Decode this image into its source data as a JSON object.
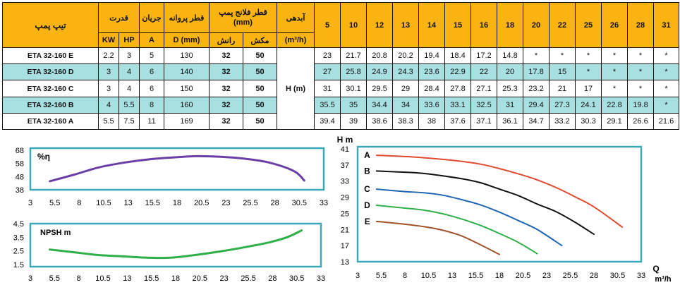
{
  "table": {
    "header": {
      "model_label": "تیپ پمپ",
      "power_label": "قدرت",
      "current_label": "جریان",
      "impeller_label": "قطر پروانه",
      "flange_label": "قطر فلانج پمپ (mm)",
      "flow_label": "آبدهی",
      "kw": "KW",
      "hp": "HP",
      "a": "A",
      "d_mm": "D (mm)",
      "discharge": "رانش",
      "suction": "مکش",
      "flow_unit": "(m³/h)",
      "head_label": "H (m)",
      "flows": [
        "5",
        "10",
        "12",
        "13",
        "14",
        "15",
        "16",
        "18",
        "20",
        "22",
        "25",
        "26",
        "28",
        "31"
      ]
    },
    "rows": [
      {
        "model": "ETA 32-160 E",
        "kw": "2.2",
        "hp": "3",
        "a": "5",
        "d": "130",
        "discharge": "32",
        "suction": "50",
        "heads": [
          "23",
          "21.7",
          "20.8",
          "20.2",
          "19.4",
          "18.4",
          "17.2",
          "14.8",
          "*",
          "*",
          "*",
          "*",
          "*",
          "*"
        ]
      },
      {
        "model": "ETA 32-160 D",
        "kw": "3",
        "hp": "4",
        "a": "6",
        "d": "140",
        "discharge": "32",
        "suction": "50",
        "heads": [
          "27",
          "25.8",
          "24.9",
          "24.3",
          "23.6",
          "22.9",
          "22",
          "20",
          "17.8",
          "15",
          "*",
          "*",
          "*",
          "*"
        ]
      },
      {
        "model": "ETA 32-160 C",
        "kw": "3",
        "hp": "4",
        "a": "6",
        "d": "150",
        "discharge": "32",
        "suction": "50",
        "heads": [
          "31",
          "30.1",
          "29.5",
          "29",
          "28.4",
          "27.8",
          "27.1",
          "25.3",
          "23.2",
          "21",
          "17",
          "*",
          "*",
          "*"
        ]
      },
      {
        "model": "ETA 32-160 B",
        "kw": "4",
        "hp": "5.5",
        "a": "8",
        "d": "160",
        "discharge": "32",
        "suction": "50",
        "heads": [
          "35.5",
          "35",
          "34.4",
          "34",
          "33.6",
          "33.1",
          "32.5",
          "31",
          "29.4",
          "27.3",
          "24.1",
          "22.8",
          "19.8",
          "*"
        ]
      },
      {
        "model": "ETA 32-160 A",
        "kw": "5.5",
        "hp": "7.5",
        "a": "11",
        "d": "169",
        "discharge": "32",
        "suction": "50",
        "heads": [
          "39.4",
          "39",
          "38.6",
          "38.3",
          "38",
          "37.6",
          "37.1",
          "36.1",
          "34.7",
          "33.2",
          "30.3",
          "29.1",
          "26.6",
          "21.6"
        ]
      }
    ]
  },
  "chart_data": [
    {
      "type": "line",
      "name_label": "%η",
      "x_ticks": [
        "3",
        "5.5",
        "8",
        "10.5",
        "13",
        "15.5",
        "18",
        "20.5",
        "23",
        "25.5",
        "28",
        "30.5",
        "33"
      ],
      "y_ticks": [
        "68",
        "58",
        "48",
        "38"
      ],
      "xlim": [
        3,
        33
      ],
      "ylim": [
        38,
        68
      ],
      "color": "#6a3ea6",
      "x": [
        5,
        7.5,
        10,
        12.5,
        15,
        17.5,
        20,
        22.5,
        25,
        27.5,
        30,
        31
      ],
      "y": [
        44.5,
        49.5,
        55,
        58.5,
        61,
        62.5,
        63.5,
        63,
        61.5,
        58.5,
        52,
        45
      ]
    },
    {
      "type": "line",
      "name_label": "NPSH  m",
      "x_ticks": [
        "3",
        "5.5",
        "8",
        "10.5",
        "13",
        "15.5",
        "18",
        "20.5",
        "23",
        "25.5",
        "28",
        "30.5",
        "33"
      ],
      "y_ticks": [
        "4.5",
        "3.5",
        "2.5",
        "1.5"
      ],
      "xlim": [
        3,
        33
      ],
      "ylim": [
        1.5,
        4.5
      ],
      "color": "#2eaf4a",
      "x": [
        5,
        7.5,
        10,
        12.5,
        15,
        17.5,
        20,
        22.5,
        25,
        27.5,
        29.5,
        31
      ],
      "y": [
        2.6,
        2.4,
        2.2,
        2.1,
        2.0,
        2.0,
        2.2,
        2.45,
        2.75,
        3.1,
        3.5,
        4.0
      ]
    },
    {
      "type": "line",
      "ylabel": "H m",
      "xlabel": "Q",
      "xunit": "m³/h",
      "x_ticks": [
        "3",
        "5.5",
        "8",
        "10.5",
        "13",
        "15.5",
        "18",
        "20.5",
        "23",
        "25.5",
        "28",
        "30.5",
        "33"
      ],
      "y_ticks": [
        "41",
        "37",
        "33",
        "29",
        "25",
        "21",
        "17",
        "13"
      ],
      "xlim": [
        3,
        33
      ],
      "ylim": [
        13,
        41
      ],
      "series": [
        {
          "name": "A",
          "color": "#e04a2e",
          "x": [
            5,
            8,
            10,
            12,
            14,
            16,
            18,
            20,
            22,
            24,
            26,
            28,
            31
          ],
          "y": [
            39.4,
            39.1,
            38.8,
            38.4,
            37.9,
            37.2,
            36.1,
            34.8,
            33.3,
            31.4,
            29.1,
            26.6,
            21.6
          ]
        },
        {
          "name": "B",
          "color": "#111111",
          "x": [
            5,
            8,
            10,
            12,
            14,
            16,
            18,
            20,
            22,
            24,
            26,
            28
          ],
          "y": [
            35.5,
            35.2,
            34.9,
            34.3,
            33.6,
            32.6,
            31.0,
            29.4,
            27.3,
            25.4,
            22.8,
            19.8
          ]
        },
        {
          "name": "C",
          "color": "#1f66b3",
          "x": [
            5,
            8,
            10,
            12,
            14,
            16,
            18,
            20,
            22,
            24.6
          ],
          "y": [
            31,
            30.4,
            30.1,
            29.5,
            28.4,
            27.1,
            25.3,
            23.2,
            21.0,
            17
          ]
        },
        {
          "name": "D",
          "color": "#2eaf4a",
          "x": [
            5,
            8,
            10,
            12,
            14,
            16,
            18,
            20,
            22
          ],
          "y": [
            27,
            26.3,
            25.8,
            24.9,
            23.6,
            22.0,
            20.0,
            17.8,
            15
          ]
        },
        {
          "name": "E",
          "color": "#a0522d",
          "x": [
            5,
            8,
            10,
            12,
            14,
            16,
            18
          ],
          "y": [
            23,
            22.3,
            21.7,
            20.8,
            19.4,
            17.2,
            14.8
          ]
        }
      ]
    }
  ]
}
